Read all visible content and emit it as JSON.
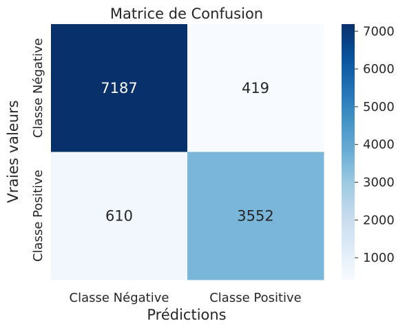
{
  "chart_data": {
    "type": "heatmap",
    "title": "Matrice de Confusion",
    "xlabel": "Prédictions",
    "ylabel": "Vraies valeurs",
    "x_categories": [
      "Classe Négative",
      "Classe Positive"
    ],
    "y_categories": [
      "Classe Négative",
      "Classe Positive"
    ],
    "values": [
      [
        7187,
        419
      ],
      [
        610,
        3552
      ]
    ],
    "colormap": "Blues",
    "vmin": 419,
    "vmax": 7187,
    "colorbar_ticks": [
      1000,
      2000,
      3000,
      4000,
      5000,
      6000,
      7000
    ]
  },
  "colors": {
    "text_dark": "#262626",
    "text_light": "#ffffff"
  }
}
